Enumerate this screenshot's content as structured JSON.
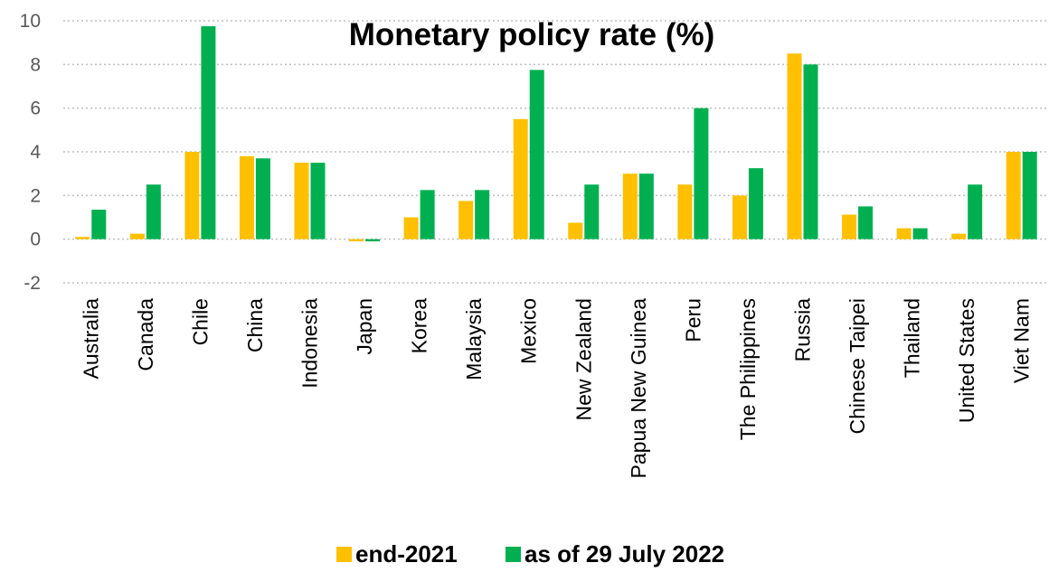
{
  "chart_data": {
    "type": "bar",
    "title": "Monetary policy rate (%)",
    "xlabel": "",
    "ylabel": "",
    "ylim": [
      -2,
      10
    ],
    "yticks": [
      -2,
      0,
      2,
      4,
      6,
      8,
      10
    ],
    "grid": true,
    "legend_position": "bottom",
    "categories": [
      "Australia",
      "Canada",
      "Chile",
      "China",
      "Indonesia",
      "Japan",
      "Korea",
      "Malaysia",
      "Mexico",
      "New Zealand",
      "Papua New Guinea",
      "Peru",
      "The Philippines",
      "Russia",
      "Chinese Taipei",
      "Thailand",
      "United States",
      "Viet Nam"
    ],
    "series": [
      {
        "name": "end-2021",
        "color": "#FFC000",
        "values": [
          0.1,
          0.25,
          4.0,
          3.8,
          3.5,
          -0.1,
          1.0,
          1.75,
          5.5,
          0.75,
          3.0,
          2.5,
          2.0,
          8.5,
          1.125,
          0.5,
          0.25,
          4.0
        ]
      },
      {
        "name": "as of 29 July 2022",
        "color": "#00B050",
        "values": [
          1.35,
          2.5,
          9.75,
          3.7,
          3.5,
          -0.1,
          2.25,
          2.25,
          7.75,
          2.5,
          3.0,
          6.0,
          3.25,
          8.0,
          1.5,
          0.5,
          2.5,
          4.0
        ]
      }
    ]
  }
}
